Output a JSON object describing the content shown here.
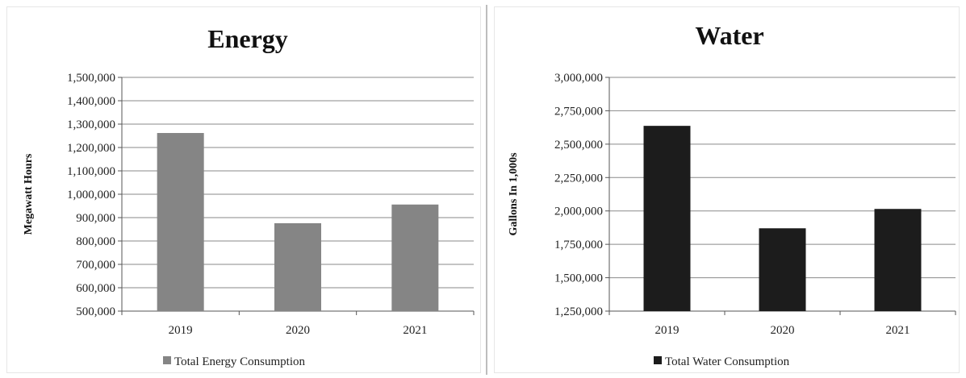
{
  "chart_data": [
    {
      "type": "bar",
      "title": "Energy",
      "ylabel": "Megawatt Hours",
      "xlabel": "",
      "categories": [
        "2019",
        "2020",
        "2021"
      ],
      "series": [
        {
          "name": "Total Energy Consumption",
          "values": [
            1262000,
            876000,
            956000
          ],
          "color": "#858585"
        }
      ],
      "ylim": [
        500000,
        1500000
      ],
      "yticks": [
        500000,
        600000,
        700000,
        800000,
        900000,
        1000000,
        1100000,
        1200000,
        1300000,
        1400000,
        1500000
      ],
      "ytick_labels": [
        "500,000",
        "600,000",
        "700,000",
        "800,000",
        "900,000",
        "1,000,000",
        "1,100,000",
        "1,200,000",
        "1,300,000",
        "1,400,000",
        "1,500,000"
      ],
      "grid": true,
      "legend": "bottom"
    },
    {
      "type": "bar",
      "title": "Water",
      "ylabel": "Gallons In 1,000s",
      "xlabel": "",
      "categories": [
        "2019",
        "2020",
        "2021"
      ],
      "series": [
        {
          "name": "Total Water Consumption",
          "values": [
            2637000,
            1870000,
            2015000
          ],
          "color": "#1c1c1c"
        }
      ],
      "ylim": [
        1250000,
        3000000
      ],
      "yticks": [
        1250000,
        1500000,
        1750000,
        2000000,
        2250000,
        2500000,
        2750000,
        3000000
      ],
      "ytick_labels": [
        "1,250,000",
        "1,500,000",
        "1,750,000",
        "2,000,000",
        "2,250,000",
        "2,500,000",
        "2,750,000",
        "3,000,000"
      ],
      "grid": true,
      "legend": "bottom"
    }
  ]
}
